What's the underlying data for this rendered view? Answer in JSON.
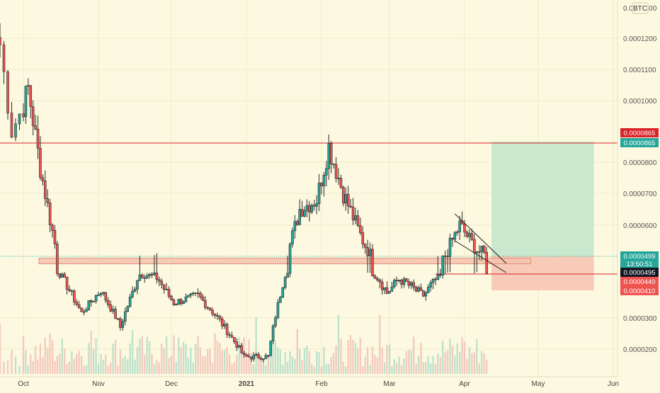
{
  "chart_data": {
    "type": "candlestick",
    "quote_currency": "BTC",
    "y_axis": {
      "ticks": [
        "0.0001200",
        "0.0001100",
        "0.0001000",
        "0.0000800",
        "0.0000700",
        "0.0000600",
        "0.0000300",
        "0.0000200"
      ],
      "tick_values": [
        0.00012,
        0.00011,
        0.0001,
        8e-05,
        7e-05,
        6e-05,
        3e-05,
        2e-05
      ],
      "top_label": "0.0001300"
    },
    "x_axis": {
      "labels": [
        "Oct",
        "Nov",
        "Dec",
        "2021",
        "Feb",
        "Mar",
        "Apr",
        "May",
        "Jun"
      ],
      "dates": [
        "2020-10-01",
        "2020-11-01",
        "2020-12-01",
        "2021-01-01",
        "2021-02-01",
        "2021-03-01",
        "2021-04-01",
        "2021-05-01",
        "2021-06-01"
      ]
    },
    "levels": {
      "resistance": "0.0000865",
      "current_price": "0.0000499",
      "countdown": "13:50:51",
      "support": "0.0000495",
      "stop": "0.0000440",
      "stop_low": "0.0000410"
    },
    "trade_setup": {
      "type": "long",
      "entry": 4.99e-05,
      "take_profit": 8.65e-05,
      "stop_loss": 4.1e-05
    },
    "support_zone": [
      4.84e-05,
      5e-05
    ],
    "series_shape": [
      [
        "2020-09-25",
        0.000118
      ],
      [
        "2020-09-28",
        9e-05
      ],
      [
        "2020-10-03",
        0.000104
      ],
      [
        "2020-10-08",
        7.8e-05
      ],
      [
        "2020-10-15",
        5e-05
      ],
      [
        "2020-10-25",
        3.2e-05
      ],
      [
        "2020-11-02",
        4.1e-05
      ],
      [
        "2020-11-10",
        2.7e-05
      ],
      [
        "2020-11-18",
        4.8e-05
      ],
      [
        "2020-11-24",
        4.7e-05
      ],
      [
        "2020-12-02",
        3.6e-05
      ],
      [
        "2020-12-12",
        3.9e-05
      ],
      [
        "2020-12-22",
        2.8e-05
      ],
      [
        "2020-12-31",
        1.8e-05
      ],
      [
        "2021-01-10",
        1.8e-05
      ],
      [
        "2021-01-17",
        4.8e-05
      ],
      [
        "2021-01-23",
        6.5e-05
      ],
      [
        "2021-01-30",
        6.8e-05
      ],
      [
        "2021-02-04",
        8.5e-05
      ],
      [
        "2021-02-10",
        7e-05
      ],
      [
        "2021-02-18",
        5.5e-05
      ],
      [
        "2021-02-28",
        4e-05
      ],
      [
        "2021-03-05",
        4.5e-05
      ],
      [
        "2021-03-15",
        3.9e-05
      ],
      [
        "2021-03-22",
        4.7e-05
      ],
      [
        "2021-03-30",
        6e-05
      ],
      [
        "2021-04-06",
        5.2e-05
      ],
      [
        "2021-04-10",
        5e-05
      ]
    ],
    "volume_shape": "low"
  }
}
